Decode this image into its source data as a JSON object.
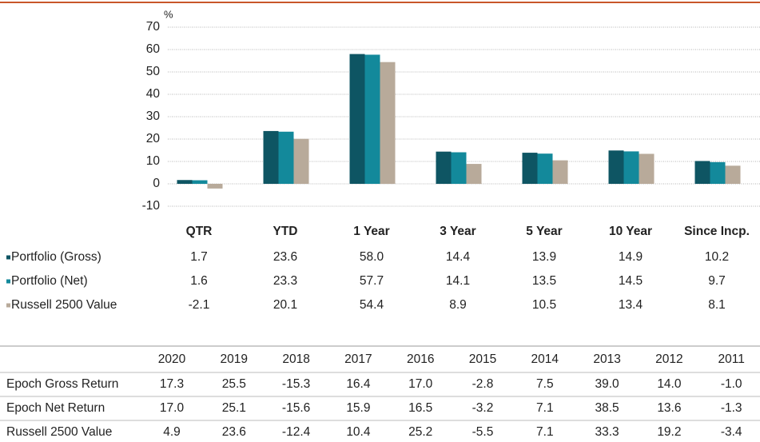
{
  "chart_data": {
    "type": "bar",
    "y_label": "%",
    "categories": [
      "QTR",
      "YTD",
      "1 Year",
      "3 Year",
      "5 Year",
      "10 Year",
      "Since Incp."
    ],
    "series": [
      {
        "name": "Portfolio (Gross)",
        "color": "#0e5563",
        "values": [
          1.7,
          23.6,
          58.0,
          14.4,
          13.9,
          14.9,
          10.2
        ],
        "value_labels": [
          "1.7",
          "23.6",
          "58.0",
          "14.4",
          "13.9",
          "14.9",
          "10.2"
        ]
      },
      {
        "name": "Portfolio (Net)",
        "color": "#13899b",
        "values": [
          1.6,
          23.3,
          57.7,
          14.1,
          13.5,
          14.5,
          9.7
        ],
        "value_labels": [
          "1.6",
          "23.3",
          "57.7",
          "14.1",
          "13.5",
          "14.5",
          "9.7"
        ]
      },
      {
        "name": "Russell 2500 Value",
        "color": "#b8aa9a",
        "values": [
          -2.1,
          20.1,
          54.4,
          8.9,
          10.5,
          13.4,
          8.1
        ],
        "value_labels": [
          "-2.1",
          "20.1",
          "54.4",
          "8.9",
          "10.5",
          "13.4",
          "8.1"
        ]
      }
    ],
    "ylim": [
      -10,
      70
    ],
    "yticks": [
      -10,
      0,
      10,
      20,
      30,
      40,
      50,
      60,
      70
    ],
    "grid": true
  },
  "table": {
    "columns": [
      "2020",
      "2019",
      "2018",
      "2017",
      "2016",
      "2015",
      "2014",
      "2013",
      "2012",
      "2011"
    ],
    "rows": [
      {
        "name": "Epoch Gross Return",
        "values": [
          "17.3",
          "25.5",
          "-15.3",
          "16.4",
          "17.0",
          "-2.8",
          "7.5",
          "39.0",
          "14.0",
          "-1.0"
        ]
      },
      {
        "name": "Epoch Net Return",
        "values": [
          "17.0",
          "25.1",
          "-15.6",
          "15.9",
          "16.5",
          "-3.2",
          "7.1",
          "38.5",
          "13.6",
          "-1.3"
        ]
      },
      {
        "name": "Russell 2500 Value",
        "values": [
          "4.9",
          "23.6",
          "-12.4",
          "10.4",
          "25.2",
          "-5.5",
          "7.1",
          "33.3",
          "19.2",
          "-3.4"
        ]
      }
    ]
  }
}
